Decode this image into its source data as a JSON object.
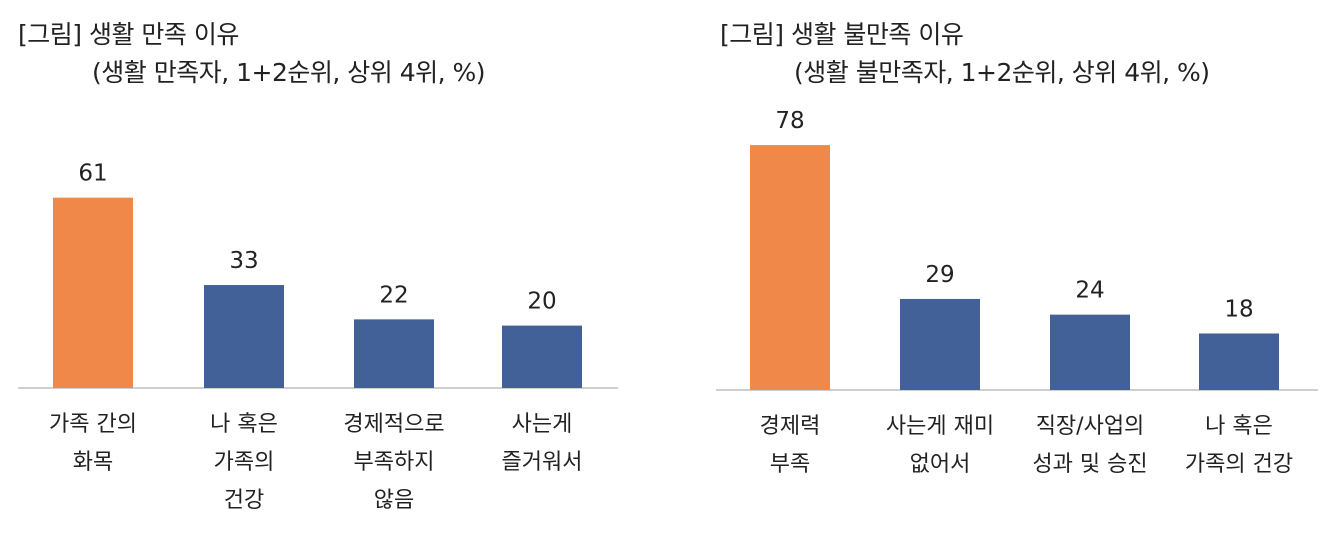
{
  "charts": [
    {
      "title": "[그림] 생활 만족 이유",
      "subtitle": "(생활 만족자, 1+2순위, 상위 4위, %)",
      "chart_data": {
        "type": "bar",
        "categories": [
          [
            "가족 간의",
            "화목"
          ],
          [
            "나 혹은",
            "가족의",
            "건강"
          ],
          [
            "경제적으로",
            "부족하지",
            "않음"
          ],
          [
            "사는게",
            "즐거워서"
          ]
        ],
        "values": [
          61,
          33,
          22,
          20
        ],
        "highlight_index": 0,
        "ylim": [
          0,
          90
        ]
      }
    },
    {
      "title": "[그림] 생활 불만족 이유",
      "subtitle": "(생활 불만족자, 1+2순위, 상위 4위, %)",
      "chart_data": {
        "type": "bar",
        "categories": [
          [
            "경제력",
            "부족"
          ],
          [
            "사는게 재미",
            "없어서"
          ],
          [
            "직장/사업의",
            "성과 및 승진"
          ],
          [
            "나 혹은",
            "가족의 건강"
          ]
        ],
        "values": [
          78,
          29,
          24,
          18
        ],
        "highlight_index": 0,
        "ylim": [
          0,
          90
        ]
      }
    }
  ],
  "colors": {
    "highlight": "#EF8848",
    "bar": "#426198",
    "axis": "#BFBFBF",
    "text": "#222222"
  }
}
